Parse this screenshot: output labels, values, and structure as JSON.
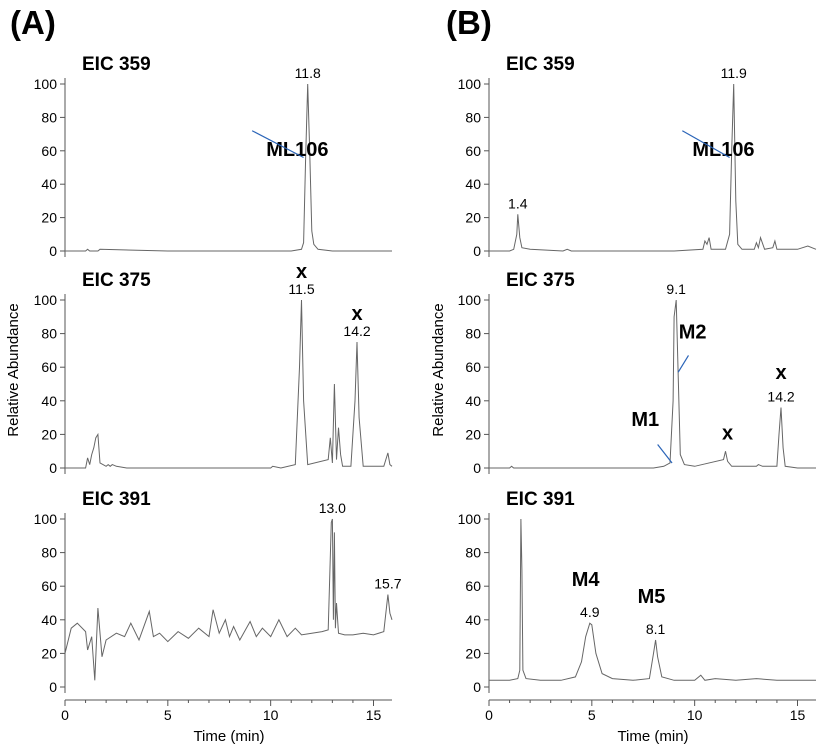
{
  "panels": [
    {
      "letter": "(A)"
    },
    {
      "letter": "(B)"
    }
  ],
  "ylabel": "Relative Abundance",
  "xlabel": "Time (min)",
  "colors": {
    "trace": "#666666",
    "leader": "#2a64b8",
    "text": "#000000"
  },
  "chart_data": [
    {
      "type": "line",
      "panel": "(A)",
      "title": "EIC 359",
      "xlim": [
        0,
        15.9
      ],
      "ylim": [
        0,
        100
      ],
      "yticks": [
        0,
        20,
        40,
        60,
        80,
        100
      ],
      "x": [
        0.0,
        0.2,
        0.5,
        1.0,
        1.1,
        1.2,
        1.3,
        1.6,
        1.7,
        5.0,
        10.0,
        11.0,
        11.5,
        11.6,
        11.7,
        11.8,
        11.9,
        12.0,
        12.1,
        12.3,
        13.0,
        15.0,
        15.9
      ],
      "series": [
        {
          "values": [
            0,
            0,
            0,
            0,
            1,
            0,
            0,
            0,
            1,
            0,
            0,
            0,
            1,
            5,
            55,
            100,
            60,
            12,
            4,
            1,
            0,
            0,
            0
          ]
        }
      ],
      "peak_labels": [
        {
          "x": 11.8,
          "y": 100,
          "text": "11.8"
        }
      ],
      "annotations": [
        {
          "text": "ML106",
          "x": 11.3,
          "y": 57
        }
      ]
    },
    {
      "type": "line",
      "panel": "(B)",
      "title": "EIC 359",
      "xlim": [
        0,
        15.9
      ],
      "ylim": [
        0,
        100
      ],
      "yticks": [
        0,
        20,
        40,
        60,
        80,
        100
      ],
      "x": [
        0.0,
        1.0,
        1.2,
        1.35,
        1.4,
        1.5,
        1.6,
        2.0,
        3.6,
        3.8,
        4.0,
        5.0,
        9.0,
        10.4,
        10.5,
        10.6,
        10.7,
        10.8,
        11.5,
        11.7,
        11.8,
        11.9,
        12.0,
        12.1,
        12.3,
        12.9,
        13.0,
        13.1,
        13.2,
        13.4,
        13.8,
        13.9,
        14.0,
        15.0,
        15.5,
        15.9
      ],
      "series": [
        {
          "values": [
            0,
            0,
            1,
            10,
            22,
            8,
            2,
            1,
            0,
            1,
            0,
            0,
            0,
            1,
            6,
            4,
            8,
            1,
            1,
            10,
            60,
            100,
            30,
            4,
            1,
            1,
            5,
            2,
            8,
            1,
            2,
            6,
            1,
            1,
            3,
            1
          ]
        }
      ],
      "peak_labels": [
        {
          "x": 11.9,
          "y": 100,
          "text": "11.9"
        },
        {
          "x": 1.4,
          "y": 22,
          "text": "1.4"
        }
      ],
      "annotations": [
        {
          "text": "ML106",
          "x": 11.4,
          "y": 57
        }
      ]
    },
    {
      "type": "line",
      "panel": "(A)",
      "title": "EIC 375",
      "xlim": [
        0,
        15.9
      ],
      "ylim": [
        0,
        100
      ],
      "yticks": [
        0,
        20,
        40,
        60,
        80,
        100
      ],
      "x": [
        0.0,
        1.0,
        1.1,
        1.2,
        1.3,
        1.4,
        1.5,
        1.6,
        1.7,
        2.0,
        2.1,
        2.2,
        2.3,
        2.5,
        3.0,
        9.0,
        10.0,
        10.1,
        10.5,
        11.2,
        11.4,
        11.5,
        11.6,
        11.8,
        12.8,
        12.9,
        13.0,
        13.1,
        13.2,
        13.3,
        13.4,
        13.5,
        13.9,
        14.1,
        14.2,
        14.3,
        14.5,
        15.5,
        15.7,
        15.8,
        15.9
      ],
      "series": [
        {
          "values": [
            0,
            0,
            6,
            2,
            8,
            12,
            18,
            20,
            3,
            1,
            2,
            1,
            2,
            1,
            0,
            0,
            0,
            1,
            0,
            2,
            60,
            100,
            40,
            2,
            5,
            18,
            3,
            50,
            5,
            24,
            8,
            1,
            1,
            40,
            75,
            30,
            1,
            1,
            9,
            2,
            1
          ]
        }
      ],
      "peak_labels": [
        {
          "x": 11.5,
          "y": 100,
          "text": "11.5"
        },
        {
          "x": 14.2,
          "y": 75,
          "text": "14.2"
        }
      ],
      "annotations": [
        {
          "text": "x",
          "x": 11.5,
          "y": 113
        },
        {
          "text": "x",
          "x": 14.2,
          "y": 88
        }
      ]
    },
    {
      "type": "line",
      "panel": "(B)",
      "title": "EIC 375",
      "xlim": [
        0,
        15.9
      ],
      "ylim": [
        0,
        100
      ],
      "yticks": [
        0,
        20,
        40,
        60,
        80,
        100
      ],
      "x": [
        0.0,
        1.0,
        1.1,
        1.2,
        2.0,
        5.0,
        8.0,
        8.5,
        8.8,
        8.95,
        9.0,
        9.1,
        9.2,
        9.3,
        9.5,
        10.0,
        11.4,
        11.5,
        11.6,
        11.8,
        13.0,
        13.1,
        13.3,
        14.0,
        14.1,
        14.2,
        14.3,
        14.4,
        15.0,
        15.9
      ],
      "series": [
        {
          "values": [
            0,
            0,
            1,
            0,
            0,
            0,
            0,
            1,
            3,
            40,
            90,
            100,
            55,
            8,
            2,
            1,
            5,
            10,
            4,
            1,
            1,
            2,
            1,
            1,
            20,
            36,
            12,
            1,
            0,
            0
          ]
        }
      ],
      "peak_labels": [
        {
          "x": 9.1,
          "y": 100,
          "text": "9.1"
        },
        {
          "x": 14.2,
          "y": 36,
          "text": "14.2"
        }
      ],
      "annotations": [
        {
          "text": "M2",
          "x": 9.9,
          "y": 77
        },
        {
          "text": "M1",
          "x": 7.6,
          "y": 25
        },
        {
          "text": "x",
          "x": 11.6,
          "y": 17
        },
        {
          "text": "x",
          "x": 14.2,
          "y": 53
        }
      ]
    },
    {
      "type": "line",
      "panel": "(A)",
      "title": "EIC 391",
      "xlim": [
        0,
        15.9
      ],
      "ylim": [
        0,
        100
      ],
      "yticks": [
        0,
        20,
        40,
        60,
        80,
        100
      ],
      "x": [
        0.0,
        0.3,
        0.6,
        1.0,
        1.1,
        1.3,
        1.45,
        1.6,
        1.8,
        2.0,
        2.5,
        2.9,
        3.2,
        3.6,
        4.1,
        4.3,
        4.6,
        5.0,
        5.5,
        6.0,
        6.5,
        7.0,
        7.2,
        7.5,
        7.8,
        8.0,
        8.2,
        8.5,
        9.0,
        9.3,
        9.6,
        10.0,
        10.4,
        10.8,
        11.2,
        11.5,
        12.0,
        12.5,
        12.8,
        12.95,
        13.0,
        13.05,
        13.1,
        13.15,
        13.2,
        13.3,
        13.6,
        14.0,
        14.5,
        15.0,
        15.5,
        15.7,
        15.8,
        15.9
      ],
      "series": [
        {
          "values": [
            20,
            35,
            38,
            33,
            22,
            30,
            4,
            47,
            18,
            28,
            32,
            30,
            38,
            28,
            45,
            30,
            32,
            27,
            33,
            29,
            35,
            30,
            46,
            32,
            40,
            30,
            36,
            28,
            39,
            30,
            35,
            30,
            40,
            30,
            35,
            31,
            32,
            33,
            34,
            98,
            100,
            40,
            92,
            35,
            50,
            32,
            31,
            31,
            32,
            31,
            33,
            55,
            44,
            40
          ]
        }
      ],
      "peak_labels": [
        {
          "x": 13.0,
          "y": 100,
          "text": "13.0"
        },
        {
          "x": 15.7,
          "y": 55,
          "text": "15.7"
        }
      ],
      "annotations": []
    },
    {
      "type": "line",
      "panel": "(B)",
      "title": "EIC 391",
      "xlim": [
        0,
        15.9
      ],
      "ylim": [
        0,
        100
      ],
      "yticks": [
        0,
        20,
        40,
        60,
        80,
        100
      ],
      "x": [
        0.0,
        1.0,
        1.4,
        1.5,
        1.55,
        1.6,
        1.65,
        1.8,
        2.5,
        3.5,
        4.2,
        4.5,
        4.7,
        4.9,
        5.0,
        5.2,
        5.5,
        6.0,
        7.0,
        7.8,
        8.0,
        8.1,
        8.2,
        8.4,
        9.0,
        10.0,
        10.3,
        10.5,
        11.0,
        12.0,
        13.0,
        14.0,
        15.0,
        15.9
      ],
      "series": [
        {
          "values": [
            4,
            4,
            5,
            10,
            100,
            70,
            10,
            5,
            4,
            4,
            6,
            15,
            30,
            38,
            37,
            20,
            8,
            5,
            4,
            5,
            20,
            28,
            18,
            6,
            4,
            4,
            7,
            4,
            5,
            4,
            5,
            4,
            4,
            4
          ]
        }
      ],
      "peak_labels": [
        {
          "x": 4.9,
          "y": 38,
          "text": "4.9"
        },
        {
          "x": 8.1,
          "y": 28,
          "text": "8.1"
        }
      ],
      "annotations": [
        {
          "text": "M4",
          "x": 4.7,
          "y": 60
        },
        {
          "text": "M5",
          "x": 7.9,
          "y": 50
        }
      ]
    }
  ]
}
